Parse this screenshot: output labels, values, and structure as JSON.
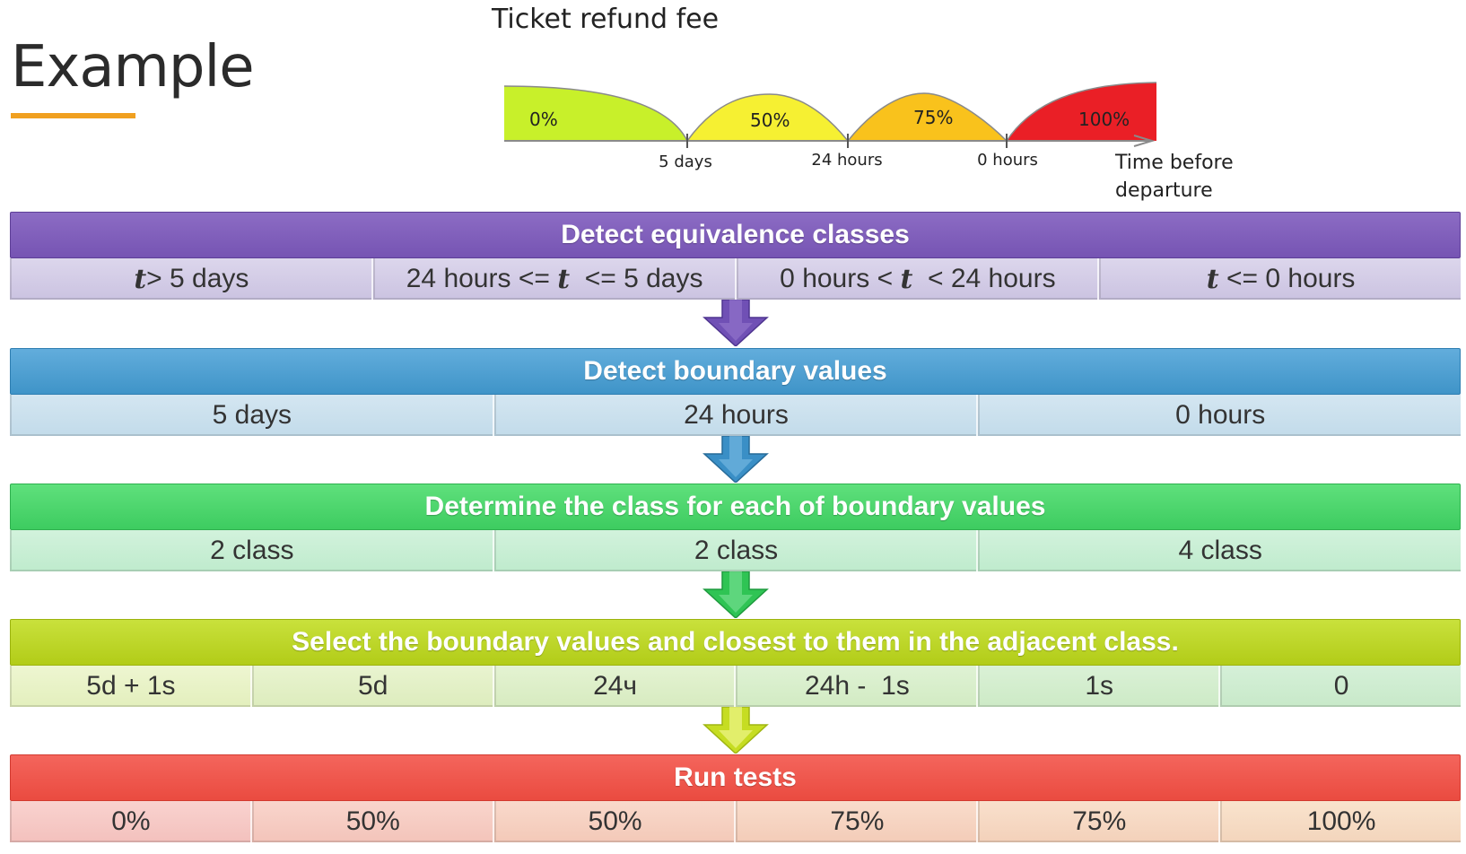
{
  "page": {
    "title": "Example",
    "accent_color": "#f0a020"
  },
  "refund_chart": {
    "title": "Ticket refund fee",
    "axis_label": "Time before departure",
    "regions": [
      {
        "label": "0%",
        "color": "#c8f02a"
      },
      {
        "label": "50%",
        "color": "#f6f032"
      },
      {
        "label": "75%",
        "color": "#f9c21c"
      },
      {
        "label": "100%",
        "color": "#ea1f26"
      }
    ],
    "ticks": [
      "5 days",
      "24 hours",
      "0 hours"
    ]
  },
  "stages": [
    {
      "title": "Detect equivalence classes",
      "color": "#8061bd",
      "cells": [
        {
          "var": "t",
          "text": " > 5 days"
        },
        {
          "pre": "24 hours <= ",
          "var": "t",
          "text": "  <= 5 days"
        },
        {
          "pre": "0 hours < ",
          "var": "t",
          "text": "  < 24 hours"
        },
        {
          "var": "t",
          "text": " <= 0 hours"
        }
      ]
    },
    {
      "title": "Detect boundary values",
      "color": "#4b9fd0",
      "cells": [
        {
          "text": "5 days"
        },
        {
          "text": "24 hours"
        },
        {
          "text": "0 hours"
        }
      ]
    },
    {
      "title": "Determine the class for each of boundary values",
      "color": "#4ad56c",
      "cells": [
        {
          "text": "2 class"
        },
        {
          "text": "2 class"
        },
        {
          "text": "4 class"
        }
      ]
    },
    {
      "title": "Select the boundary values and closest to them in the adjacent class.",
      "color": "#bdd622",
      "cells": [
        {
          "text": "5d + 1s"
        },
        {
          "text": "5d"
        },
        {
          "text": "24ч"
        },
        {
          "text": "24h -  1s"
        },
        {
          "text": "1s"
        },
        {
          "text": "0"
        }
      ]
    },
    {
      "title": "Run tests",
      "color": "#ee5449",
      "cells": [
        {
          "text": "0%"
        },
        {
          "text": "50%"
        },
        {
          "text": "50%"
        },
        {
          "text": "75%"
        },
        {
          "text": "75%"
        },
        {
          "text": "100%"
        }
      ]
    }
  ]
}
